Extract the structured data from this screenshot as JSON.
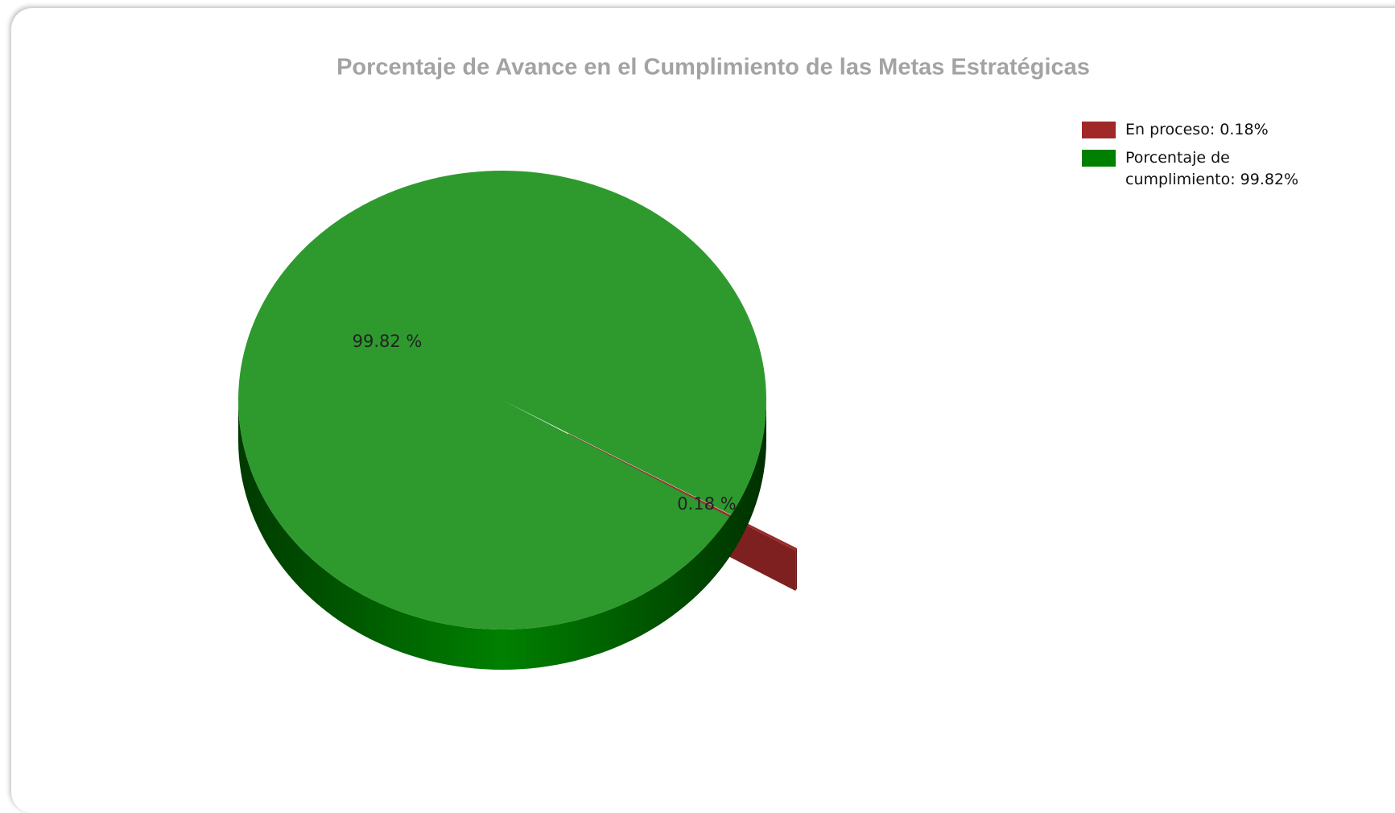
{
  "chart_data": {
    "type": "pie",
    "title": "Porcentaje de Avance en el Cumplimiento de las Metas Estratégicas",
    "labels": [
      "En proceso: 0.18%",
      "Porcentaje de cumplimiento: 99.82%"
    ],
    "values": [
      0.18,
      99.82
    ],
    "value_labels": [
      "0.18 %",
      "99.82 %"
    ],
    "colors": [
      "#9b2a2a",
      "#2e9a2e"
    ],
    "legend_colors": [
      "#a02828",
      "#008000"
    ],
    "legend": "upper right"
  }
}
